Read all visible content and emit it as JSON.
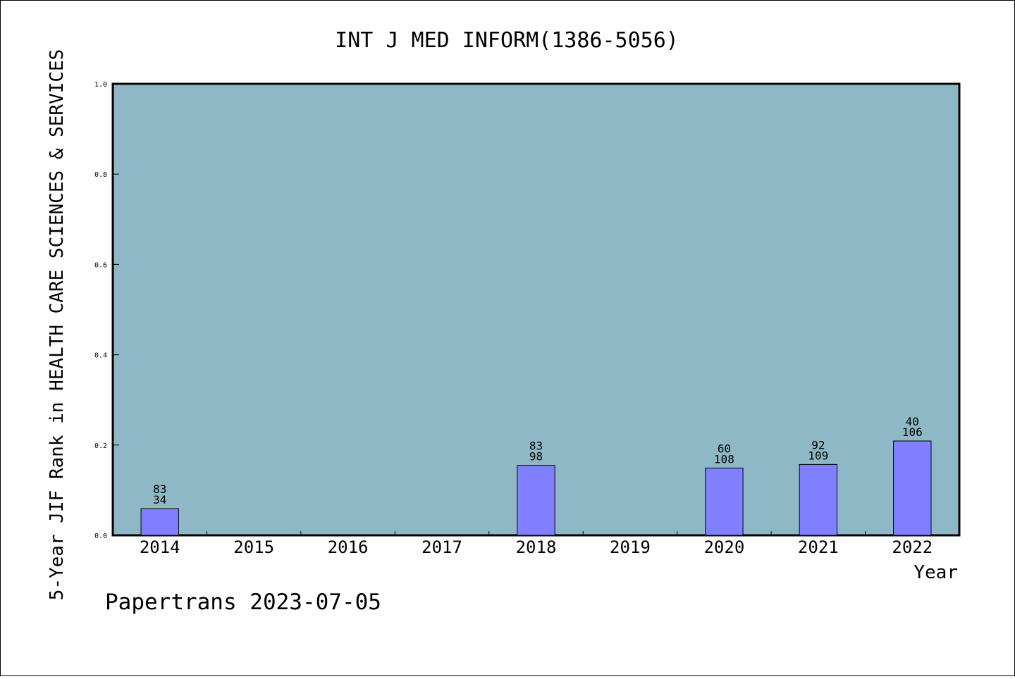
{
  "chart_data": {
    "type": "bar",
    "title": "INT J MED INFORM(1386-5056)",
    "xlabel": "Year",
    "ylabel": "5-Year JIF Rank in HEALTH CARE SCIENCES & SERVICES",
    "categories": [
      "2014",
      "2015",
      "2016",
      "2017",
      "2018",
      "2019",
      "2020",
      "2021",
      "2022"
    ],
    "values": [
      0.059,
      null,
      null,
      null,
      0.155,
      null,
      0.149,
      0.157,
      0.209
    ],
    "bar_labels": [
      [
        "83",
        "34"
      ],
      null,
      null,
      null,
      [
        "83",
        "98"
      ],
      null,
      [
        "60",
        "108"
      ],
      [
        "92",
        "109"
      ],
      [
        "40",
        "106"
      ]
    ],
    "ylim": [
      0,
      1.0
    ],
    "yticks": [
      "0.0",
      "0.2",
      "0.4",
      "0.6",
      "0.8",
      "1.0"
    ],
    "grid": false,
    "colors": {
      "plot_bg": "#8fb8c6",
      "bar": "#8080ff",
      "bar_edge": "#000000"
    }
  },
  "footer": {
    "text": "Papertrans 2023-07-05"
  }
}
